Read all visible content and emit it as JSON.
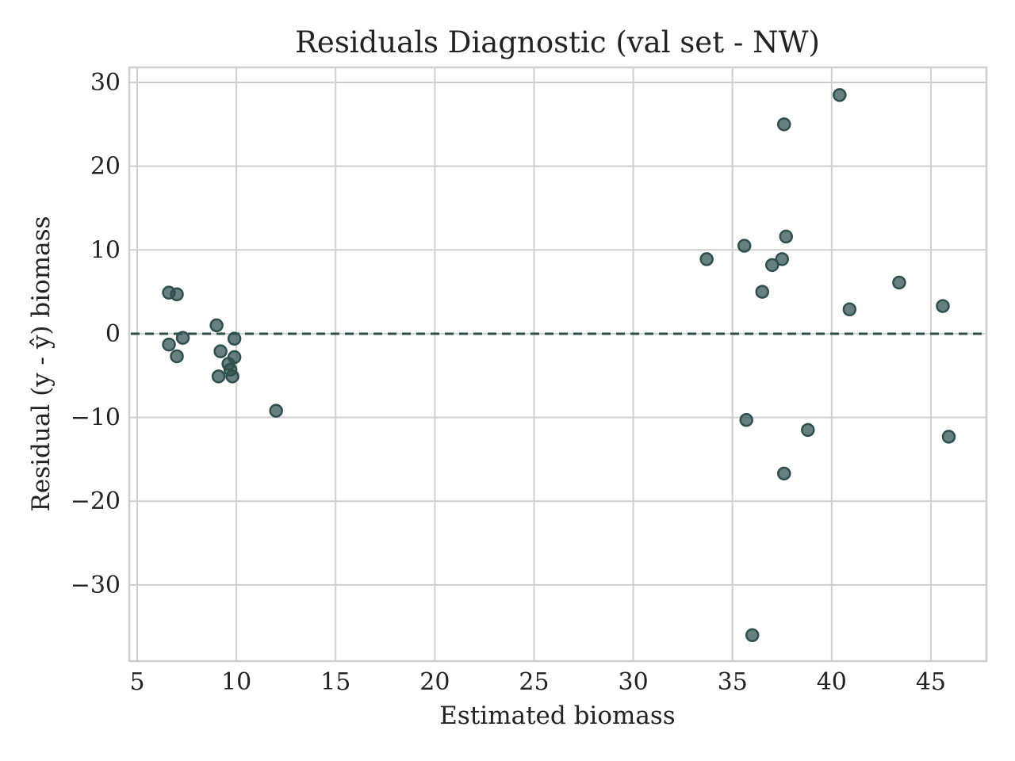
{
  "chart_data": {
    "type": "scatter",
    "title": "Residuals Diagnostic (val set - NW)",
    "xlabel": "Estimated biomass",
    "ylabel": "Residual (y - ŷ) biomass",
    "xlim": [
      4.6,
      47.8
    ],
    "ylim": [
      -39.1,
      31.8
    ],
    "xticks": [
      5,
      10,
      15,
      20,
      25,
      30,
      35,
      40,
      45
    ],
    "yticks": [
      30,
      20,
      10,
      0,
      -10,
      -20,
      -30
    ],
    "ytick_labels": [
      "30",
      "20",
      "10",
      "0",
      "−10",
      "−20",
      "−30"
    ],
    "grid": true,
    "reference_line": {
      "y": 0,
      "style": "dashed"
    },
    "series": [
      {
        "x": [
          6.6,
          7.0,
          6.6,
          7.0,
          7.3,
          9.0,
          9.2,
          9.1,
          9.6,
          9.7,
          9.8,
          9.9,
          9.9,
          12.0,
          33.7,
          35.6,
          35.7,
          36.0,
          36.5,
          37.0,
          37.5,
          37.6,
          37.6,
          37.7,
          38.8,
          40.4,
          40.9,
          43.4,
          45.6,
          45.9
        ],
        "y": [
          4.9,
          4.7,
          -1.3,
          -2.7,
          -0.5,
          1.0,
          -2.1,
          -5.1,
          -3.6,
          -4.3,
          -5.1,
          -0.6,
          -2.8,
          -9.2,
          8.9,
          10.5,
          -10.3,
          -36.0,
          5.0,
          8.2,
          8.9,
          -16.7,
          25.0,
          11.6,
          -11.5,
          28.5,
          2.9,
          6.1,
          3.3,
          -12.3
        ]
      }
    ],
    "colors": {
      "marker": "#2f4f4f",
      "reference_line": "#2f4f4f",
      "grid": "#cfcfcf"
    }
  }
}
